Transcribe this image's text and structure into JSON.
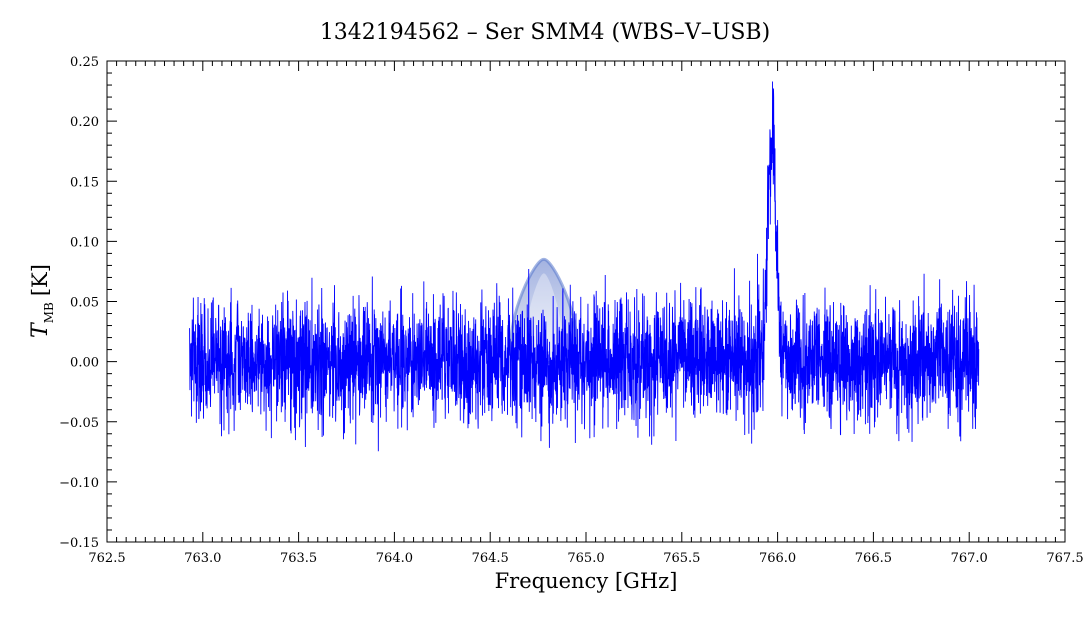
{
  "chart_data": {
    "type": "line",
    "title": "1342194562 – Ser SMM4 (WBS–V–USB)",
    "xlabel": "Frequency [GHz]",
    "ylabel_symbol": "T",
    "ylabel_subscript": "MB",
    "ylabel_unit": "[K]",
    "xlim": [
      762.5,
      767.5
    ],
    "ylim": [
      -0.15,
      0.25
    ],
    "x_ticks": [
      "762.5",
      "763.0",
      "763.5",
      "764.0",
      "764.5",
      "765.0",
      "765.5",
      "766.0",
      "766.5",
      "767.0",
      "767.5"
    ],
    "y_ticks": [
      "−0.15",
      "−0.10",
      "−0.05",
      "0.00",
      "0.05",
      "0.10",
      "0.15",
      "0.20",
      "0.25"
    ],
    "grid": false,
    "line_color": "#0000ff",
    "series": [
      {
        "x_range": [
          762.93,
          767.05
        ],
        "noise_rms_K": 0.025,
        "features": [
          {
            "kind": "emission_line",
            "center_GHz": 765.97,
            "peak_K": 0.19,
            "fwhm_GHz": 0.05
          }
        ]
      }
    ],
    "watermark": {
      "kind": "translucent-blue-triangle-logo",
      "center_GHz": 764.78,
      "color": "#5577cc"
    }
  }
}
